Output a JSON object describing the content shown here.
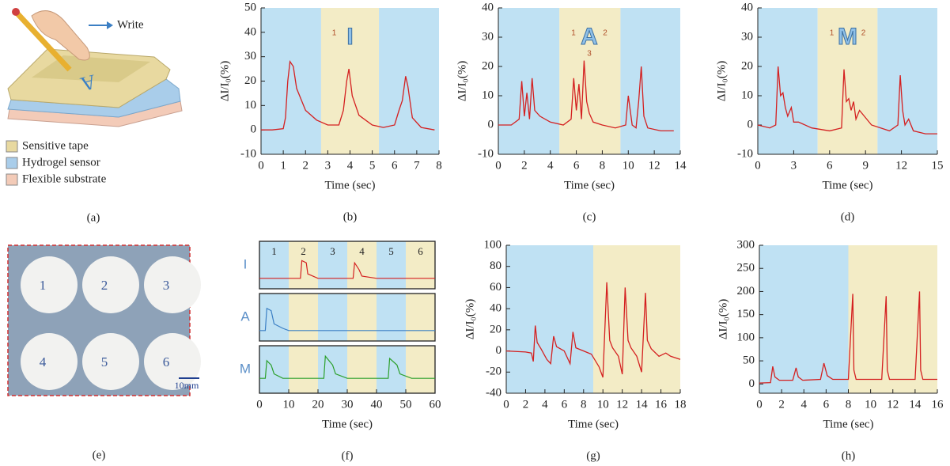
{
  "panel_a": {
    "label": "(a)",
    "write": "Write",
    "layers": [
      {
        "name": "Sensitive tape",
        "color": "#e8d9a0"
      },
      {
        "name": "Hydrogel sensor",
        "color": "#a9cdea"
      },
      {
        "name": "Flexible substrate",
        "color": "#f3cbb8"
      }
    ]
  },
  "panel_e": {
    "label": "(e)",
    "numbers": [
      "1",
      "2",
      "3",
      "4",
      "5",
      "6"
    ],
    "scale": "10mm"
  },
  "chart_data": [
    {
      "type": "line",
      "label": "(b)",
      "x_label": "Time (sec)",
      "y_label": "ΔI/I₀(%)",
      "color": "#d42020",
      "icon": "I",
      "stroke_numbers": [
        "1"
      ],
      "xlim": [
        0,
        8
      ],
      "xticks": [
        0,
        1,
        2,
        3,
        4,
        5,
        6,
        7,
        8
      ],
      "ylim": [
        -10,
        50
      ],
      "yticks": [
        -10,
        0,
        10,
        20,
        30,
        40,
        50
      ],
      "bands": [
        {
          "start": 0,
          "end": 2.7,
          "color": "#bfe1f3"
        },
        {
          "start": 2.7,
          "end": 5.3,
          "color": "#f3ecc6"
        },
        {
          "start": 5.3,
          "end": 8,
          "color": "#bfe1f3"
        }
      ],
      "x": [
        0,
        0.5,
        1.0,
        1.1,
        1.2,
        1.3,
        1.45,
        1.6,
        2.0,
        2.5,
        3.0,
        3.5,
        3.7,
        3.85,
        3.95,
        4.1,
        4.4,
        5.0,
        5.5,
        6.0,
        6.2,
        6.35,
        6.5,
        6.6,
        6.8,
        7.2,
        7.8
      ],
      "values": [
        0,
        0,
        0.5,
        5,
        20,
        28,
        26,
        17,
        8,
        4,
        2,
        2,
        8,
        20,
        25,
        14,
        6,
        2,
        1,
        2,
        8,
        12,
        22,
        18,
        5,
        1,
        0
      ]
    },
    {
      "type": "line",
      "label": "(c)",
      "x_label": "Time (sec)",
      "y_label": "ΔI/I₀(%)",
      "color": "#d42020",
      "icon": "A",
      "stroke_numbers": [
        "1",
        "2",
        "3"
      ],
      "xlim": [
        0,
        14
      ],
      "xticks": [
        0,
        2,
        4,
        6,
        8,
        10,
        12,
        14
      ],
      "ylim": [
        -10,
        40
      ],
      "yticks": [
        -10,
        0,
        10,
        20,
        30,
        40
      ],
      "bands": [
        {
          "start": 0,
          "end": 4.7,
          "color": "#bfe1f3"
        },
        {
          "start": 4.7,
          "end": 9.4,
          "color": "#f3ecc6"
        },
        {
          "start": 9.4,
          "end": 14,
          "color": "#bfe1f3"
        }
      ],
      "x": [
        0,
        1.0,
        1.6,
        1.8,
        2.0,
        2.2,
        2.4,
        2.6,
        2.8,
        3.2,
        4.0,
        5.0,
        5.6,
        5.8,
        6.0,
        6.2,
        6.4,
        6.6,
        6.8,
        7.0,
        7.3,
        8.0,
        9.0,
        9.8,
        10.0,
        10.3,
        10.6,
        10.8,
        11.0,
        11.2,
        11.5,
        12.5,
        13.5
      ],
      "values": [
        0,
        0,
        2,
        15,
        3,
        11,
        2,
        16,
        5,
        3,
        1,
        0,
        2,
        16,
        5,
        14,
        2,
        22,
        8,
        4,
        1,
        0,
        -1,
        0,
        10,
        0,
        -1,
        8,
        20,
        3,
        -1,
        -2,
        -2
      ]
    },
    {
      "type": "line",
      "label": "(d)",
      "x_label": "Time (sec)",
      "y_label": "ΔI/I₀(%)",
      "color": "#d42020",
      "icon": "M",
      "stroke_numbers": [
        "1",
        "2"
      ],
      "xlim": [
        0,
        15
      ],
      "xticks": [
        0,
        3,
        6,
        9,
        12,
        15
      ],
      "ylim": [
        -10,
        40
      ],
      "yticks": [
        -10,
        0,
        10,
        20,
        30,
        40
      ],
      "bands": [
        {
          "start": 0,
          "end": 5,
          "color": "#bfe1f3"
        },
        {
          "start": 5,
          "end": 10,
          "color": "#f3ecc6"
        },
        {
          "start": 10,
          "end": 15,
          "color": "#bfe1f3"
        }
      ],
      "x": [
        0,
        1.0,
        1.5,
        1.7,
        1.9,
        2.1,
        2.3,
        2.5,
        2.8,
        3.0,
        3.4,
        4.5,
        6.0,
        7.0,
        7.2,
        7.4,
        7.6,
        7.8,
        8.0,
        8.2,
        8.5,
        9.5,
        11.0,
        11.7,
        11.9,
        12.1,
        12.3,
        12.6,
        13.0,
        14.0,
        15.0
      ],
      "values": [
        0,
        -1,
        0,
        20,
        10,
        11,
        6,
        3,
        6,
        1,
        1,
        -1,
        -2,
        -1,
        19,
        8,
        9,
        5,
        8,
        2,
        5,
        0,
        -2,
        0,
        17,
        5,
        0,
        2,
        -2,
        -3,
        -3
      ]
    },
    {
      "type": "rows",
      "label": "(f)",
      "x_label": "Time (sec)",
      "xlim": [
        0,
        60
      ],
      "xticks": [
        0,
        10,
        20,
        30,
        40,
        50,
        60
      ],
      "bands": [
        {
          "start": 0,
          "end": 10,
          "color": "#bfe1f3",
          "label": "1"
        },
        {
          "start": 10,
          "end": 20,
          "color": "#f3ecc6",
          "label": "2"
        },
        {
          "start": 20,
          "end": 30,
          "color": "#bfe1f3",
          "label": "3"
        },
        {
          "start": 30,
          "end": 40,
          "color": "#f3ecc6",
          "label": "4"
        },
        {
          "start": 40,
          "end": 50,
          "color": "#bfe1f3",
          "label": "5"
        },
        {
          "start": 50,
          "end": 60,
          "color": "#f3ecc6",
          "label": "6"
        }
      ],
      "series": [
        {
          "name": "I",
          "color": "#d42020",
          "ylim": [
            0,
            1
          ],
          "x": [
            0,
            14,
            14.5,
            16,
            16.5,
            20,
            32,
            32.5,
            34,
            35,
            40,
            60
          ],
          "values": [
            0.2,
            0.2,
            0.6,
            0.55,
            0.3,
            0.2,
            0.2,
            0.55,
            0.4,
            0.25,
            0.2,
            0.2
          ]
        },
        {
          "name": "A",
          "color": "#3b7fc4",
          "ylim": [
            0,
            1
          ],
          "x": [
            0,
            2,
            2.5,
            4,
            5,
            8,
            10,
            60
          ],
          "values": [
            0.2,
            0.2,
            0.7,
            0.65,
            0.35,
            0.25,
            0.2,
            0.2
          ]
        },
        {
          "name": "M",
          "color": "#2ca02c",
          "ylim": [
            0,
            1
          ],
          "x": [
            0,
            2,
            2.5,
            4,
            5,
            8,
            22,
            22.5,
            25,
            26,
            30,
            44,
            44.5,
            47,
            48,
            52,
            60
          ],
          "values": [
            0.3,
            0.3,
            0.7,
            0.6,
            0.4,
            0.3,
            0.3,
            0.8,
            0.6,
            0.4,
            0.3,
            0.3,
            0.75,
            0.6,
            0.4,
            0.3,
            0.3
          ]
        }
      ]
    },
    {
      "type": "line",
      "label": "(g)",
      "x_label": "Time (sec)",
      "y_label": "ΔI/I₀(%)",
      "color": "#d42020",
      "xlim": [
        0,
        18
      ],
      "xticks": [
        0,
        2,
        4,
        6,
        8,
        10,
        12,
        14,
        16,
        18
      ],
      "ylim": [
        -40,
        100
      ],
      "yticks": [
        -40,
        -20,
        0,
        20,
        40,
        60,
        80,
        100
      ],
      "bands": [
        {
          "start": 0,
          "end": 9,
          "color": "#bfe1f3"
        },
        {
          "start": 9,
          "end": 18,
          "color": "#f3ecc6"
        }
      ],
      "x": [
        0,
        2.0,
        2.6,
        2.8,
        3.0,
        3.2,
        3.6,
        4.2,
        4.6,
        4.9,
        5.2,
        6.0,
        6.6,
        6.9,
        7.2,
        8.0,
        8.8,
        9.6,
        10.0,
        10.4,
        10.7,
        11.0,
        11.6,
        12.0,
        12.3,
        12.6,
        12.9,
        13.5,
        14.0,
        14.4,
        14.6,
        15.0,
        15.8,
        16.5,
        17.0,
        18.0
      ],
      "values": [
        0,
        -1,
        -2,
        -10,
        24,
        8,
        2,
        -8,
        -12,
        14,
        4,
        0,
        -12,
        18,
        3,
        0,
        -3,
        -15,
        -25,
        65,
        10,
        3,
        -5,
        -22,
        60,
        10,
        3,
        -5,
        -20,
        55,
        10,
        2,
        -5,
        -2,
        -5,
        -8
      ]
    },
    {
      "type": "line",
      "label": "(h)",
      "x_label": "Time (sec)",
      "y_label": "ΔI/I₀(%)",
      "color": "#d42020",
      "xlim": [
        0,
        16
      ],
      "xticks": [
        0,
        2,
        4,
        6,
        8,
        10,
        12,
        14,
        16
      ],
      "ylim": [
        -20,
        300
      ],
      "yticks": [
        0,
        50,
        100,
        150,
        200,
        250,
        300
      ],
      "bands": [
        {
          "start": 0,
          "end": 8,
          "color": "#bfe1f3"
        },
        {
          "start": 8,
          "end": 16,
          "color": "#f3ecc6"
        }
      ],
      "x": [
        0,
        1.0,
        1.2,
        1.4,
        1.8,
        3.0,
        3.3,
        3.5,
        3.9,
        5.5,
        5.8,
        6.1,
        6.6,
        8.0,
        8.4,
        8.5,
        8.7,
        9.5,
        11.0,
        11.4,
        11.5,
        11.7,
        12.5,
        14.0,
        14.4,
        14.5,
        14.7,
        16.0
      ],
      "values": [
        2,
        3,
        38,
        15,
        8,
        8,
        35,
        15,
        8,
        10,
        45,
        18,
        10,
        10,
        195,
        30,
        10,
        10,
        10,
        190,
        30,
        10,
        10,
        10,
        200,
        30,
        10,
        10
      ]
    }
  ]
}
